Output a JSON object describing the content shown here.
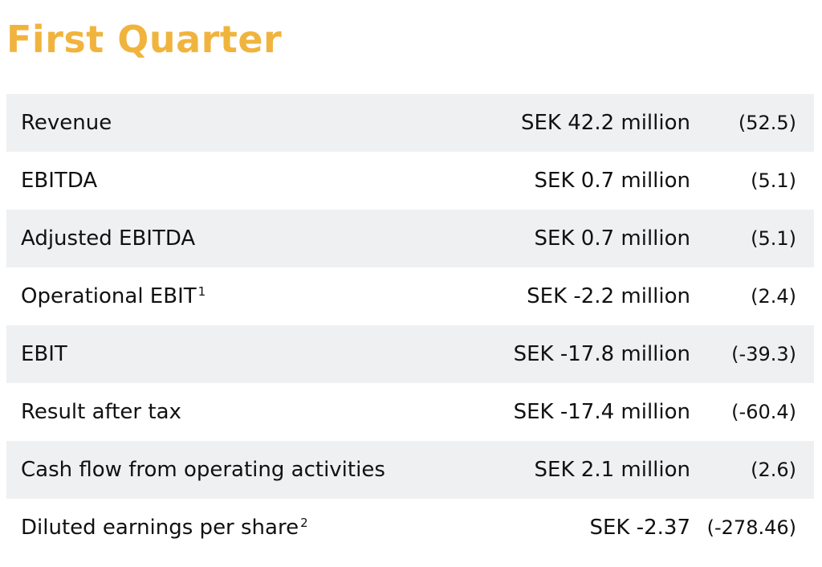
{
  "title": "First Quarter",
  "colors": {
    "title": "#F0B43E",
    "row_shade": "#EEF0F2"
  },
  "rows": [
    {
      "label": "Revenue",
      "sup": "",
      "value": "SEK 42.2 million",
      "prior": "(52.5)"
    },
    {
      "label": "EBITDA",
      "sup": "",
      "value": "SEK 0.7 million",
      "prior": "(5.1)"
    },
    {
      "label": "Adjusted EBITDA",
      "sup": "",
      "value": "SEK 0.7 million",
      "prior": "(5.1)"
    },
    {
      "label": "Operational EBIT",
      "sup": "1",
      "value": "SEK -2.2 million",
      "prior": "(2.4)"
    },
    {
      "label": "EBIT",
      "sup": "",
      "value": "SEK -17.8 million",
      "prior": "(-39.3)"
    },
    {
      "label": "Result after tax",
      "sup": "",
      "value": "SEK -17.4 million",
      "prior": "(-60.4)"
    },
    {
      "label": "Cash flow from operating activities",
      "sup": "",
      "value": "SEK 2.1 million",
      "prior": "(2.6)"
    },
    {
      "label": "Diluted earnings per share",
      "sup": "2",
      "value": "SEK -2.37",
      "prior": "(-278.46)"
    }
  ]
}
